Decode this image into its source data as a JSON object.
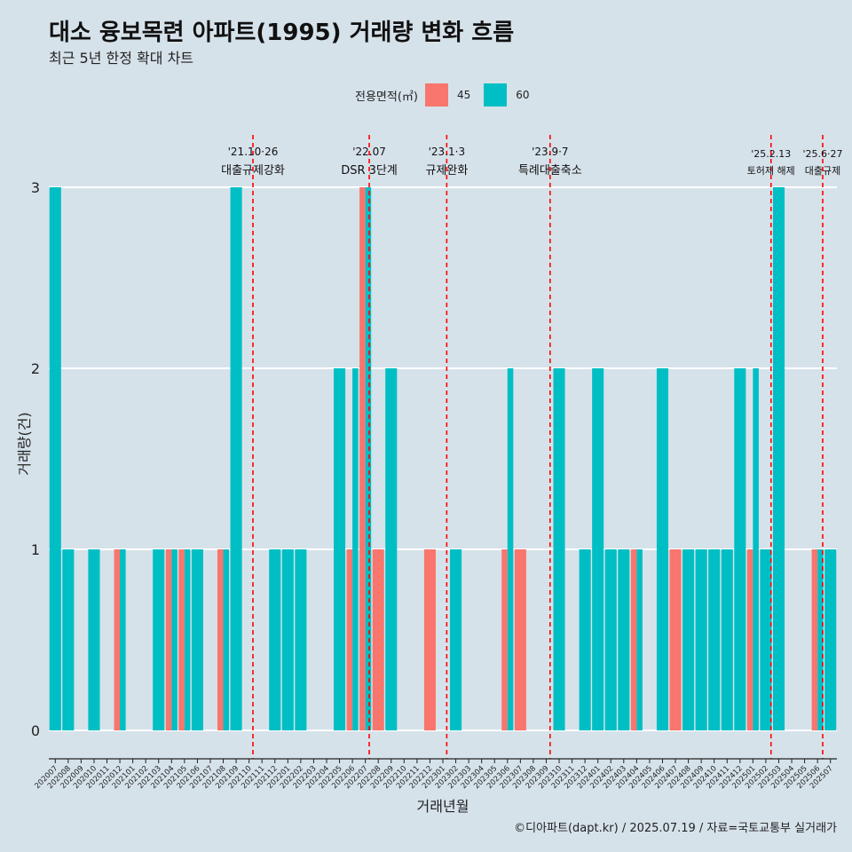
{
  "title": "대소 융보목련 아파트(1995) 거래량 변화 흐름",
  "subtitle": "최근 5년 한정 확대 차트",
  "legend": {
    "title": "전용면적(㎡)",
    "items": [
      {
        "label": "45",
        "color": "#f8766d"
      },
      {
        "label": "60",
        "color": "#00bfc4"
      }
    ]
  },
  "caption": "©디아파트(dapt.kr) / 2025.07.19 / 자료=국토교통부 실거래가",
  "colors": {
    "background": "#d6e2ea",
    "grid": "#ffffff",
    "event_line": "#ff0000"
  },
  "chart_data": {
    "type": "bar",
    "stacked": false,
    "xlabel": "거래년월",
    "ylabel": "거래량(건)",
    "ylim": [
      0,
      3
    ],
    "yticks": [
      0,
      1,
      2,
      3
    ],
    "grid": true,
    "legend_position": "top",
    "categories": [
      "202007",
      "202008",
      "202009",
      "202010",
      "202011",
      "202012",
      "202101",
      "202102",
      "202103",
      "202104",
      "202105",
      "202106",
      "202107",
      "202108",
      "202109",
      "202110",
      "202111",
      "202112",
      "202201",
      "202202",
      "202203",
      "202204",
      "202205",
      "202206",
      "202207",
      "202208",
      "202209",
      "202210",
      "202211",
      "202212",
      "202301",
      "202302",
      "202303",
      "202304",
      "202305",
      "202306",
      "202307",
      "202308",
      "202309",
      "202310",
      "202311",
      "202312",
      "202401",
      "202402",
      "202403",
      "202404",
      "202405",
      "202406",
      "202407",
      "202408",
      "202409",
      "202410",
      "202411",
      "202412",
      "202501",
      "202502",
      "202503",
      "202504",
      "202505",
      "202506",
      "202507"
    ],
    "series": [
      {
        "name": "45",
        "color": "#f8766d",
        "values": [
          0,
          0,
          0,
          0,
          0,
          1,
          0,
          0,
          0,
          1,
          1,
          0,
          0,
          1,
          0,
          0,
          0,
          0,
          0,
          0,
          0,
          0,
          0,
          1,
          3,
          1,
          0,
          0,
          0,
          1,
          0,
          0,
          0,
          0,
          0,
          1,
          1,
          0,
          0,
          0,
          0,
          0,
          0,
          0,
          0,
          1,
          0,
          0,
          1,
          0,
          0,
          0,
          0,
          0,
          1,
          0,
          0,
          0,
          0,
          1,
          0
        ]
      },
      {
        "name": "60",
        "color": "#00bfc4",
        "values": [
          3,
          1,
          0,
          1,
          0,
          1,
          0,
          0,
          1,
          1,
          1,
          1,
          0,
          1,
          3,
          0,
          0,
          1,
          1,
          1,
          0,
          0,
          2,
          2,
          3,
          0,
          2,
          0,
          0,
          0,
          0,
          1,
          0,
          0,
          0,
          2,
          0,
          0,
          0,
          2,
          0,
          1,
          2,
          1,
          1,
          1,
          0,
          2,
          0,
          1,
          1,
          1,
          1,
          2,
          2,
          1,
          3,
          0,
          0,
          1,
          1
        ]
      }
    ],
    "annotations": [
      {
        "x": 15.3,
        "date": "'21.10·26",
        "text": "대출규제강화"
      },
      {
        "x": 24.3,
        "date": "'22.07",
        "text": "DSR 3단계"
      },
      {
        "x": 30.3,
        "date": "'23.1·3",
        "text": "규제완화"
      },
      {
        "x": 38.3,
        "date": "'23.9·7",
        "text": "특례대출축소"
      },
      {
        "x": 55.4,
        "date": "'25.2.13",
        "text": "토허제 해제"
      },
      {
        "x": 59.4,
        "date": "'25.6·27",
        "text": "대출규제"
      }
    ]
  }
}
